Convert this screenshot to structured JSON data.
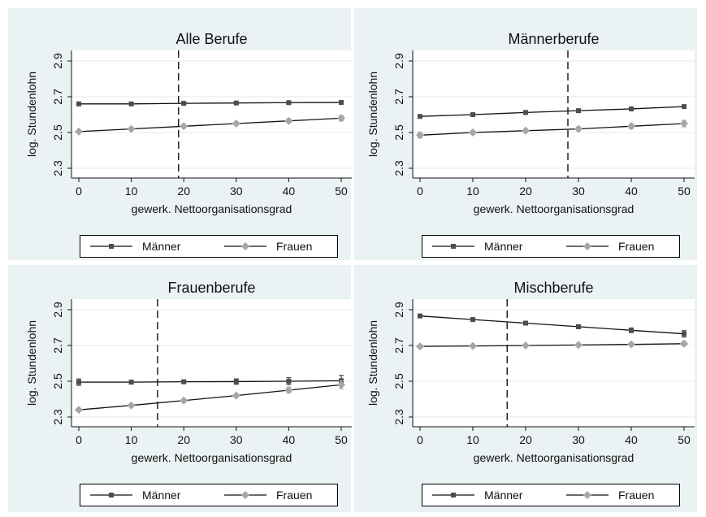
{
  "chart_data": [
    {
      "type": "line",
      "title": "Alle Berufe",
      "xlabel": "gewerk. Nettoorganisationsgrad",
      "ylabel": "log. Stundenlohn",
      "x_ticks": [
        "0",
        "10",
        "20",
        "30",
        "40",
        "50"
      ],
      "y_ticks": [
        "2.3",
        "2.5",
        "2.7",
        "2.9"
      ],
      "xlim": [
        0,
        50
      ],
      "ylim": [
        2.3,
        2.9
      ],
      "grid": true,
      "legend_position": "bottom",
      "reference_line_x": 19,
      "x": [
        0,
        10,
        20,
        30,
        40,
        50
      ],
      "series": [
        {
          "name": "Männer",
          "marker": "square",
          "color": "#4d4d4d",
          "values": [
            2.66,
            2.66,
            2.663,
            2.665,
            2.667,
            2.668
          ],
          "ci": [
            0.008,
            0.005,
            0.005,
            0.005,
            0.006,
            0.008
          ]
        },
        {
          "name": "Frauen",
          "marker": "diamond",
          "color": "#a6a6a6",
          "values": [
            2.505,
            2.52,
            2.535,
            2.55,
            2.565,
            2.58
          ],
          "ci": [
            0.008,
            0.007,
            0.007,
            0.008,
            0.01,
            0.015
          ]
        }
      ]
    },
    {
      "type": "line",
      "title": "Männerberufe",
      "xlabel": "gewerk. Nettoorganisationsgrad",
      "ylabel": "log. Stundenlohn",
      "x_ticks": [
        "0",
        "10",
        "20",
        "30",
        "40",
        "50"
      ],
      "y_ticks": [
        "2.3",
        "2.5",
        "2.7",
        "2.9"
      ],
      "xlim": [
        0,
        50
      ],
      "ylim": [
        2.3,
        2.9
      ],
      "grid": true,
      "legend_position": "bottom",
      "reference_line_x": 28,
      "x": [
        0,
        10,
        20,
        30,
        40,
        50
      ],
      "series": [
        {
          "name": "Männer",
          "marker": "square",
          "color": "#4d4d4d",
          "values": [
            2.59,
            2.6,
            2.612,
            2.622,
            2.632,
            2.645
          ],
          "ci": [
            0.008,
            0.005,
            0.005,
            0.005,
            0.006,
            0.008
          ]
        },
        {
          "name": "Frauen",
          "marker": "diamond",
          "color": "#a6a6a6",
          "values": [
            2.485,
            2.5,
            2.51,
            2.52,
            2.535,
            2.55
          ],
          "ci": [
            0.015,
            0.01,
            0.008,
            0.01,
            0.013,
            0.018
          ]
        }
      ]
    },
    {
      "type": "line",
      "title": "Frauenberufe",
      "xlabel": "gewerk. Nettoorganisationsgrad",
      "ylabel": "log. Stundenlohn",
      "x_ticks": [
        "0",
        "10",
        "20",
        "30",
        "40",
        "50"
      ],
      "y_ticks": [
        "2.3",
        "2.5",
        "2.7",
        "2.9"
      ],
      "xlim": [
        0,
        50
      ],
      "ylim": [
        2.3,
        2.9
      ],
      "grid": true,
      "legend_position": "bottom",
      "reference_line_x": 15,
      "x": [
        0,
        10,
        20,
        30,
        40,
        50
      ],
      "series": [
        {
          "name": "Männer",
          "marker": "square",
          "color": "#4d4d4d",
          "values": [
            2.495,
            2.495,
            2.497,
            2.498,
            2.5,
            2.503
          ],
          "ci": [
            0.018,
            0.01,
            0.01,
            0.015,
            0.02,
            0.03
          ]
        },
        {
          "name": "Frauen",
          "marker": "diamond",
          "color": "#a6a6a6",
          "values": [
            2.34,
            2.365,
            2.392,
            2.42,
            2.45,
            2.48
          ],
          "ci": [
            0.008,
            0.006,
            0.006,
            0.008,
            0.015,
            0.022
          ]
        }
      ]
    },
    {
      "type": "line",
      "title": "Mischberufe",
      "xlabel": "gewerk. Nettoorganisationsgrad",
      "ylabel": "log. Stundenlohn",
      "x_ticks": [
        "0",
        "10",
        "20",
        "30",
        "40",
        "50"
      ],
      "y_ticks": [
        "2.3",
        "2.5",
        "2.7",
        "2.9"
      ],
      "xlim": [
        0,
        50
      ],
      "ylim": [
        2.3,
        2.9
      ],
      "grid": true,
      "legend_position": "bottom",
      "reference_line_x": 16.5,
      "x": [
        0,
        10,
        20,
        30,
        40,
        50
      ],
      "series": [
        {
          "name": "Männer",
          "marker": "square",
          "color": "#4d4d4d",
          "values": [
            2.865,
            2.845,
            2.825,
            2.805,
            2.785,
            2.765
          ],
          "ci": [
            0.01,
            0.008,
            0.008,
            0.01,
            0.013,
            0.018
          ]
        },
        {
          "name": "Frauen",
          "marker": "diamond",
          "color": "#a6a6a6",
          "values": [
            2.695,
            2.697,
            2.7,
            2.703,
            2.706,
            2.71
          ],
          "ci": [
            0.008,
            0.005,
            0.005,
            0.006,
            0.008,
            0.012
          ]
        }
      ]
    }
  ]
}
